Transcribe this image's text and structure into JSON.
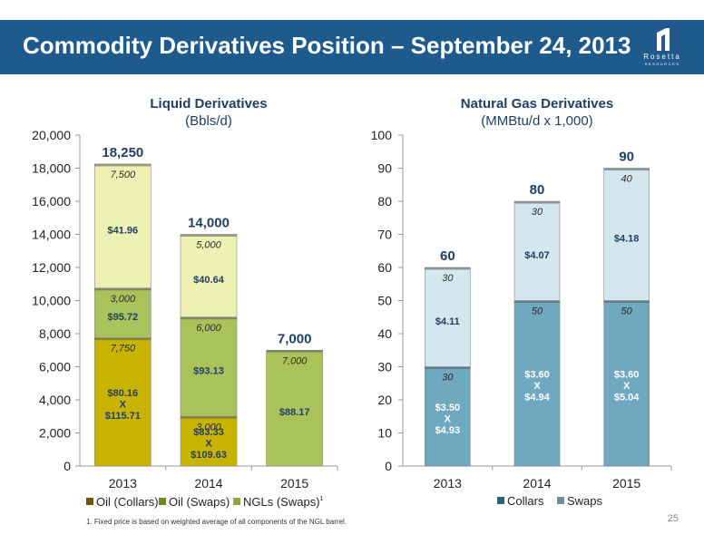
{
  "header": {
    "title": "Commodity Derivatives Position – September 24, 2013",
    "logo_name": "Rosetta",
    "logo_sub": "RESOURCES"
  },
  "footnote": "1.   Fixed price is based on weighted average of all components of the NGL barrel.",
  "page_number": "25",
  "colors": {
    "oil_collars": "#c8b400",
    "oil_swaps": "#a9c35a",
    "ngls_swaps": "#eef1b4",
    "gas_collars": "#6fa9bf",
    "gas_swaps": "#d3e7ef",
    "header": "#1e5a8c",
    "label": "#1f3f63"
  },
  "chart_data": [
    {
      "type": "bar",
      "stacked": true,
      "title": "Liquid Derivatives",
      "subtitle": "(Bbls/d)",
      "categories": [
        "2013",
        "2014",
        "2015"
      ],
      "ylim": [
        0,
        20000
      ],
      "yticks": [
        "0",
        "2,000",
        "4,000",
        "6,000",
        "8,000",
        "10,000",
        "12,000",
        "14,000",
        "16,000",
        "18,000",
        "20,000"
      ],
      "totals": [
        "18,250",
        "14,000",
        "7,000"
      ],
      "legend_position": "bottom",
      "legend_suffix": "1",
      "series": [
        {
          "name": "Oil (Collars)",
          "values": [
            7750,
            3000,
            0
          ],
          "volume_labels": [
            "7,750",
            "3,000",
            ""
          ],
          "price_labels": [
            [
              "$80.16",
              "X",
              "$115.71"
            ],
            [
              "$83.33",
              "X",
              "$109.63"
            ],
            []
          ]
        },
        {
          "name": "Oil (Swaps)",
          "values": [
            3000,
            6000,
            7000
          ],
          "volume_labels": [
            "3,000",
            "6,000",
            "7,000"
          ],
          "price_labels": [
            [
              "$95.72"
            ],
            [
              "$93.13"
            ],
            [
              "$88.17"
            ]
          ]
        },
        {
          "name": "NGLs (Swaps)",
          "values": [
            7500,
            5000,
            0
          ],
          "volume_labels": [
            "7,500",
            "5,000",
            ""
          ],
          "price_labels": [
            [
              "$41.96"
            ],
            [
              "$40.64"
            ],
            []
          ]
        }
      ]
    },
    {
      "type": "bar",
      "stacked": true,
      "title": "Natural Gas Derivatives",
      "subtitle": "(MMBtu/d x 1,000)",
      "categories": [
        "2013",
        "2014",
        "2015"
      ],
      "ylim": [
        0,
        100
      ],
      "yticks": [
        "0",
        "10",
        "20",
        "30",
        "40",
        "50",
        "60",
        "70",
        "80",
        "90",
        "100"
      ],
      "totals": [
        "60",
        "80",
        "90"
      ],
      "legend_position": "bottom",
      "series": [
        {
          "name": "Collars",
          "values": [
            30,
            50,
            50
          ],
          "volume_labels": [
            "30",
            "50",
            "50"
          ],
          "price_labels": [
            [
              "$3.50",
              "X",
              "$4.93"
            ],
            [
              "$3.60",
              "X",
              "$4.94"
            ],
            [
              "$3.60",
              "X",
              "$5.04"
            ]
          ]
        },
        {
          "name": "Swaps",
          "values": [
            30,
            30,
            40
          ],
          "volume_labels": [
            "30",
            "30",
            "40"
          ],
          "price_labels": [
            [
              "$4.11"
            ],
            [
              "$4.07"
            ],
            [
              "$4.18"
            ]
          ]
        }
      ]
    }
  ]
}
